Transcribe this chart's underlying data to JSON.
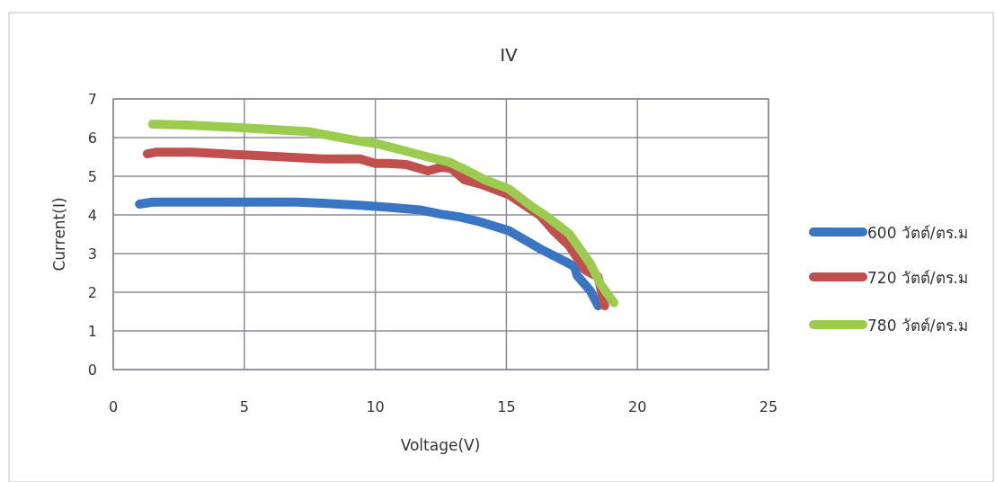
{
  "chart_data": {
    "type": "line",
    "title": "IV",
    "xlabel": "Voltage(V)",
    "ylabel": "Current(I)",
    "xlim": [
      0,
      25
    ],
    "xticks": [
      0,
      5,
      10,
      15,
      20,
      25
    ],
    "ylim": [
      0,
      7
    ],
    "yticks": [
      0,
      1,
      2,
      3,
      4,
      5,
      6,
      7
    ],
    "grid": true,
    "legend": "right",
    "marker": "none",
    "line_style": "solid",
    "series": [
      {
        "name": "600 วัตต์/ตร.ม",
        "color": "#3a75c4",
        "x": [
          1.0,
          1.5,
          3,
          5,
          7,
          8,
          9.4,
          10.5,
          11.7,
          12.5,
          13.2,
          14.0,
          15.1,
          16.3,
          17.2,
          17.6,
          17.7,
          18.2,
          18.5
        ],
        "values": [
          4.28,
          4.33,
          4.33,
          4.33,
          4.33,
          4.3,
          4.25,
          4.2,
          4.13,
          4.02,
          3.95,
          3.82,
          3.59,
          3.12,
          2.81,
          2.66,
          2.43,
          2.04,
          1.65
        ]
      },
      {
        "name": "720 วัตต์/ตร.ม",
        "color": "#c0504d",
        "x": [
          1.3,
          1.6,
          3,
          5,
          8,
          9.4,
          10.0,
          10.5,
          11.2,
          12.0,
          12.5,
          12.9,
          13.4,
          14.0,
          15.1,
          16.3,
          16.8,
          17.4,
          18.0,
          18.5,
          18.75
        ],
        "values": [
          5.58,
          5.62,
          5.62,
          5.55,
          5.45,
          5.45,
          5.33,
          5.33,
          5.3,
          5.14,
          5.23,
          5.2,
          4.91,
          4.8,
          4.52,
          3.98,
          3.59,
          3.2,
          2.58,
          2.39,
          1.65
        ]
      },
      {
        "name": "780 วัตต์/ตร.ม",
        "color": "#9bcb4f",
        "x": [
          1.5,
          3,
          5,
          7.5,
          9.4,
          10.0,
          11.0,
          12.0,
          12.8,
          13.5,
          14.2,
          15.1,
          16.0,
          16.5,
          17.4,
          18.2,
          18.6,
          19.1
        ],
        "values": [
          6.35,
          6.32,
          6.25,
          6.15,
          5.91,
          5.85,
          5.68,
          5.5,
          5.37,
          5.15,
          4.9,
          4.67,
          4.2,
          3.98,
          3.51,
          2.74,
          2.2,
          1.73
        ]
      }
    ]
  }
}
